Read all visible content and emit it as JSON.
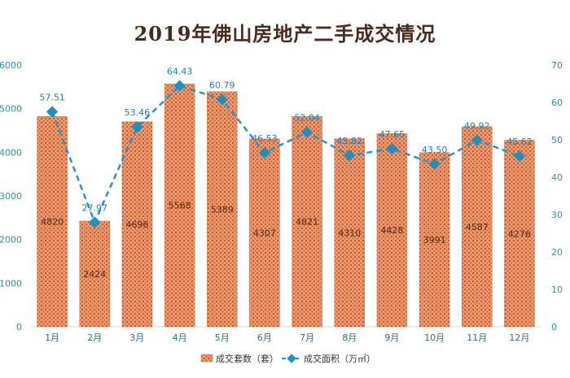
{
  "chart_data": {
    "type": "bar",
    "title": "2019年佛山房地产二手成交情况",
    "categories": [
      "1月",
      "2月",
      "3月",
      "4月",
      "5月",
      "6月",
      "7月",
      "8月",
      "9月",
      "10月",
      "11月",
      "12月"
    ],
    "series": [
      {
        "name": "成交套数（套）",
        "type": "bar",
        "axis": "left",
        "values": [
          4820,
          2424,
          4698,
          5568,
          5389,
          4307,
          4821,
          4310,
          4428,
          3991,
          4587,
          4276
        ],
        "labels": [
          "4820",
          "2424",
          "4698",
          "5568",
          "5389",
          "4307",
          "4821",
          "4310",
          "4428",
          "3991",
          "4587",
          "4276"
        ]
      },
      {
        "name": "成交面积（万㎡）",
        "type": "line",
        "axis": "right",
        "values": [
          57.51,
          27.97,
          53.46,
          64.43,
          60.79,
          46.53,
          52.04,
          45.82,
          47.65,
          43.5,
          49.92,
          45.62
        ],
        "labels": [
          "57.51",
          "27.97",
          "53.46",
          "64.43",
          "60.79",
          "46.53",
          "52.04",
          "45.82",
          "47.65",
          "43.50",
          "49.92",
          "45.62"
        ]
      }
    ],
    "y_left": {
      "min": 0,
      "max": 6000,
      "ticks": [
        "0",
        "1000",
        "2000",
        "3000",
        "4000",
        "5000",
        "6000"
      ]
    },
    "y_right": {
      "min": 0,
      "max": 70,
      "ticks": [
        "0",
        "10",
        "20",
        "30",
        "40",
        "50",
        "60",
        "70"
      ]
    },
    "legend_position": "bottom-center",
    "grid": false,
    "colors": {
      "bar": "#e48a5a",
      "bar_hatch": "#c94f22",
      "line": "#2a93c4",
      "marker": "#1f8fc0",
      "axis_text": "#2a8fbf",
      "value_label": "#1f7fb0"
    }
  }
}
